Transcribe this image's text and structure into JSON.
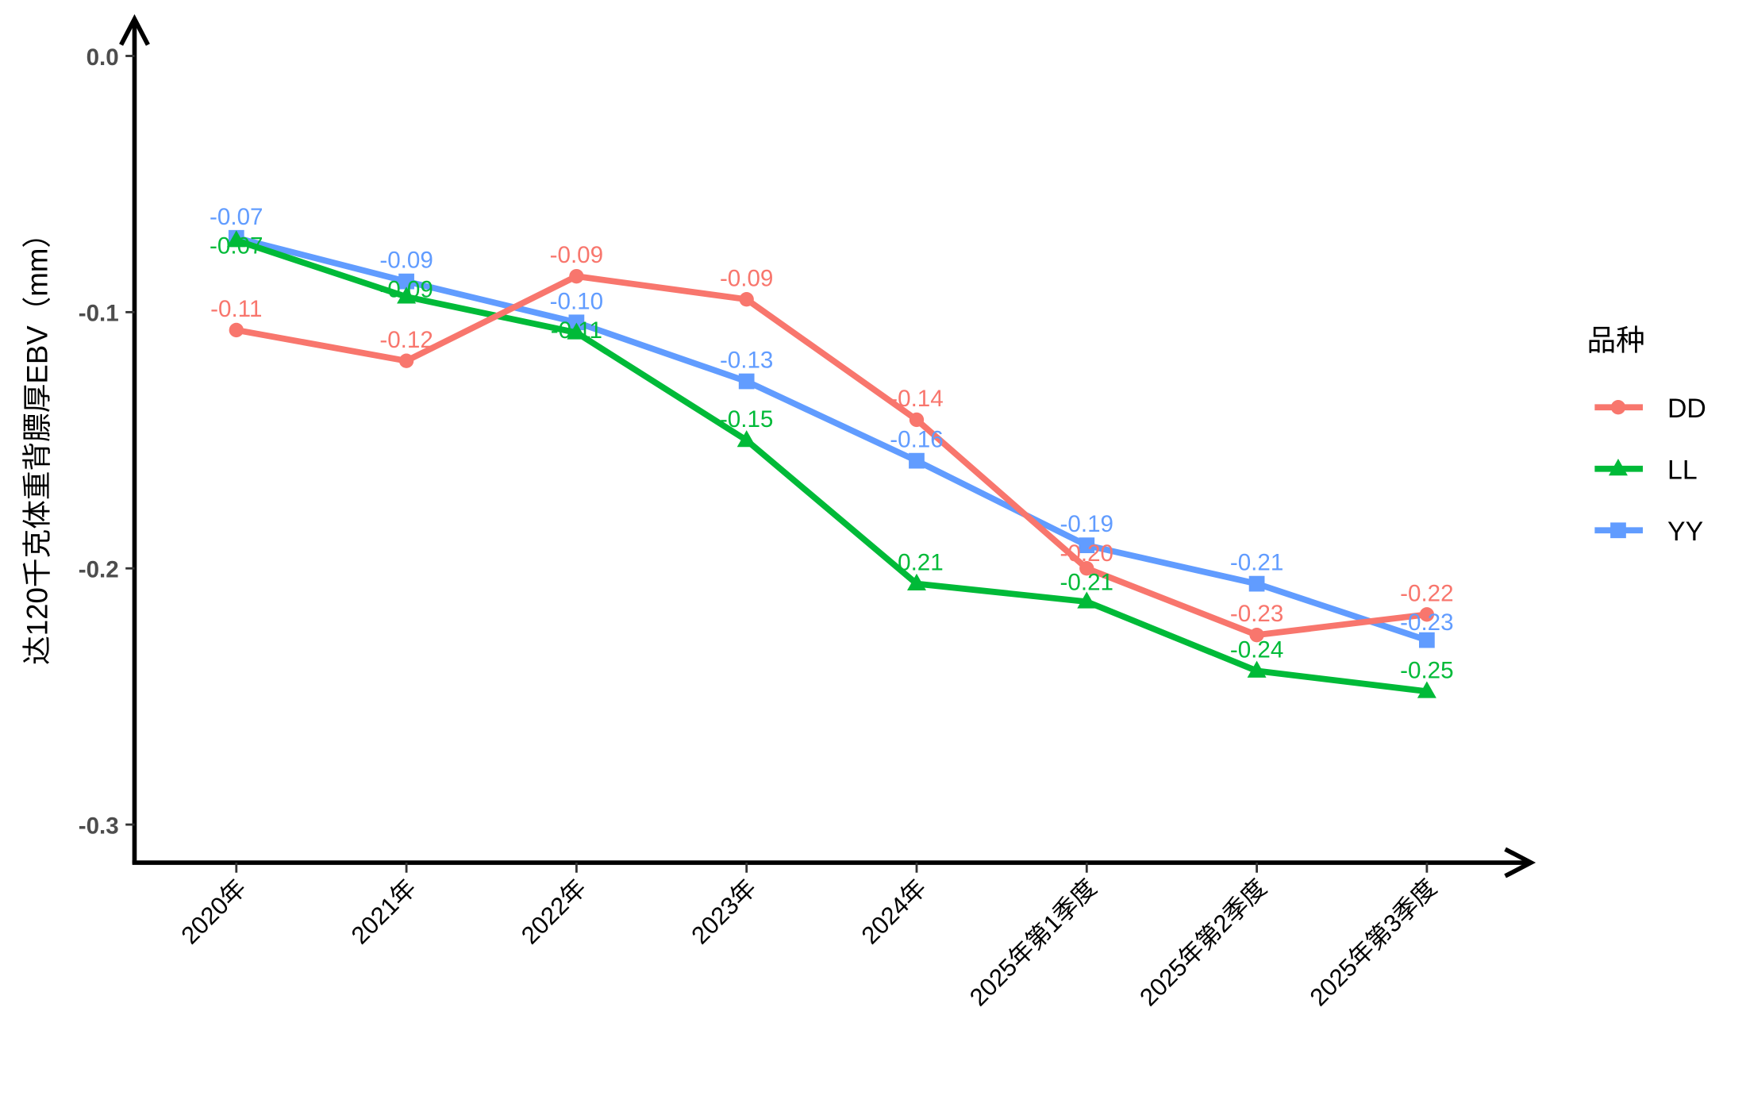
{
  "chart_data": {
    "type": "line",
    "title": "",
    "xlabel": "",
    "ylabel": "达120千克体重背膘厚EBV（mm）",
    "ylim": [
      -0.315,
      0.0
    ],
    "yticks": [
      0.0,
      -0.1,
      -0.2,
      -0.3
    ],
    "ytick_labels": [
      "0.0",
      "-0.1",
      "-0.2",
      "-0.3"
    ],
    "categories": [
      "2020年",
      "2021年",
      "2022年",
      "2023年",
      "2024年",
      "2025年第1季度",
      "2025年第2季度",
      "2025年第3季度"
    ],
    "grid": false,
    "legend": {
      "title": "品种",
      "placement": "right"
    },
    "series": [
      {
        "name": "YY",
        "color": "#619CFF",
        "marker": "square",
        "values": [
          -0.071,
          -0.088,
          -0.104,
          -0.127,
          -0.158,
          -0.191,
          -0.206,
          -0.228
        ],
        "labels": [
          "-0.07",
          "-0.09",
          "-0.10",
          "-0.13",
          "-0.16",
          "-0.19",
          "-0.21",
          "-0.23"
        ]
      },
      {
        "name": "LL",
        "color": "#00BA38",
        "marker": "triangle",
        "values": [
          -0.072,
          -0.094,
          -0.108,
          -0.15,
          -0.206,
          -0.213,
          -0.24,
          -0.248
        ],
        "labels": [
          "-0.07",
          "-0.09",
          "-0.11",
          "-0.15",
          "-0.21",
          "-0.21",
          "-0.24",
          "-0.25"
        ]
      },
      {
        "name": "DD",
        "color": "#F8766D",
        "marker": "circle",
        "values": [
          -0.107,
          -0.119,
          -0.086,
          -0.095,
          -0.142,
          -0.2,
          -0.226,
          -0.218
        ],
        "labels": [
          "-0.11",
          "-0.12",
          "-0.09",
          "-0.09",
          "-0.14",
          "-0.20",
          "-0.23",
          "-0.22"
        ]
      }
    ],
    "legend_order": [
      "DD",
      "LL",
      "YY"
    ]
  }
}
